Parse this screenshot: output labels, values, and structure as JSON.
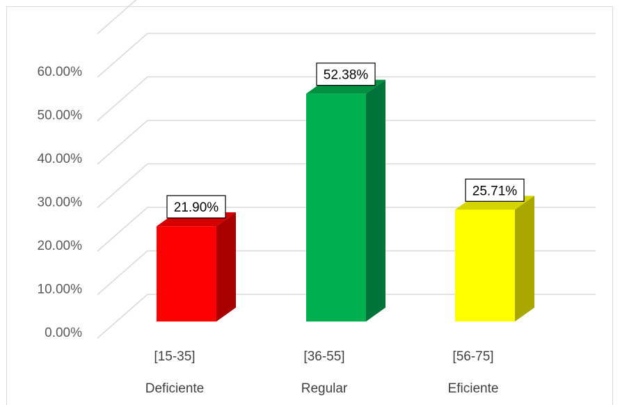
{
  "chart_data": {
    "type": "bar",
    "categories": [
      "[15-35]",
      "[36-55]",
      "[56-75]"
    ],
    "subcategories": [
      "Deficiente",
      "Regular",
      "Eficiente"
    ],
    "values": [
      21.9,
      52.38,
      25.71
    ],
    "data_labels": [
      "21.90%",
      "52.38%",
      "25.71%"
    ],
    "y_ticks": [
      0,
      10,
      20,
      30,
      40,
      50,
      60
    ],
    "y_tick_labels": [
      "0.00%",
      "10.00%",
      "20.00%",
      "30.00%",
      "40.00%",
      "50.00%",
      "60.00%"
    ],
    "ylim": [
      0,
      70
    ],
    "grid": true,
    "style": "3d-column",
    "colors": {
      "front": [
        "#ff0000",
        "#00b050",
        "#ffff00"
      ],
      "side": [
        "#a80000",
        "#00733a",
        "#a8a800"
      ],
      "top": [
        "#d40000",
        "#009040",
        "#d4d400"
      ],
      "grid": "#d9d9d9"
    }
  }
}
